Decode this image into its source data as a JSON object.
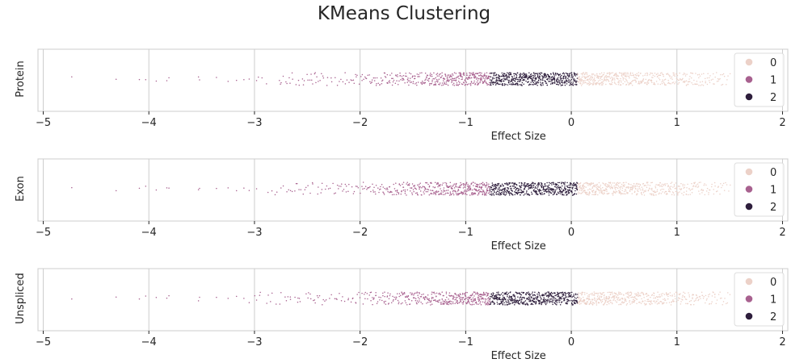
{
  "title": "KMeans Clustering",
  "chart_data": {
    "type": "scatter",
    "subtype": "strip",
    "xlabel": "Effect Size",
    "xlim": [
      -5.05,
      2.05
    ],
    "xticks": [
      -5,
      -4,
      -3,
      -2,
      -1,
      0,
      1,
      2
    ],
    "xtick_labels": [
      "−5",
      "−4",
      "−3",
      "−2",
      "−1",
      "0",
      "1",
      "2"
    ],
    "grid": true,
    "legend_position": "upper-right",
    "legend": [
      {
        "label": "0",
        "color": "#ecd1c8"
      },
      {
        "label": "1",
        "color": "#a8618f"
      },
      {
        "label": "2",
        "color": "#2e1e3c"
      }
    ],
    "cluster_ranges": [
      {
        "cluster": "1",
        "x_range": [
          -5.0,
          -0.77
        ]
      },
      {
        "cluster": "2",
        "x_range": [
          -0.77,
          0.06
        ]
      },
      {
        "cluster": "0",
        "x_range": [
          0.06,
          1.5
        ]
      }
    ],
    "outliers": [
      -4.73,
      -4.31,
      -4.09,
      -4.03,
      -3.93,
      -3.83,
      -3.81,
      -3.53,
      -3.52,
      -3.36,
      -3.25,
      -3.17,
      -3.1,
      -3.05,
      -2.98
    ],
    "panels": [
      {
        "ylabel": "Protein"
      },
      {
        "ylabel": "Exon"
      },
      {
        "ylabel": "Unspliced"
      }
    ]
  }
}
